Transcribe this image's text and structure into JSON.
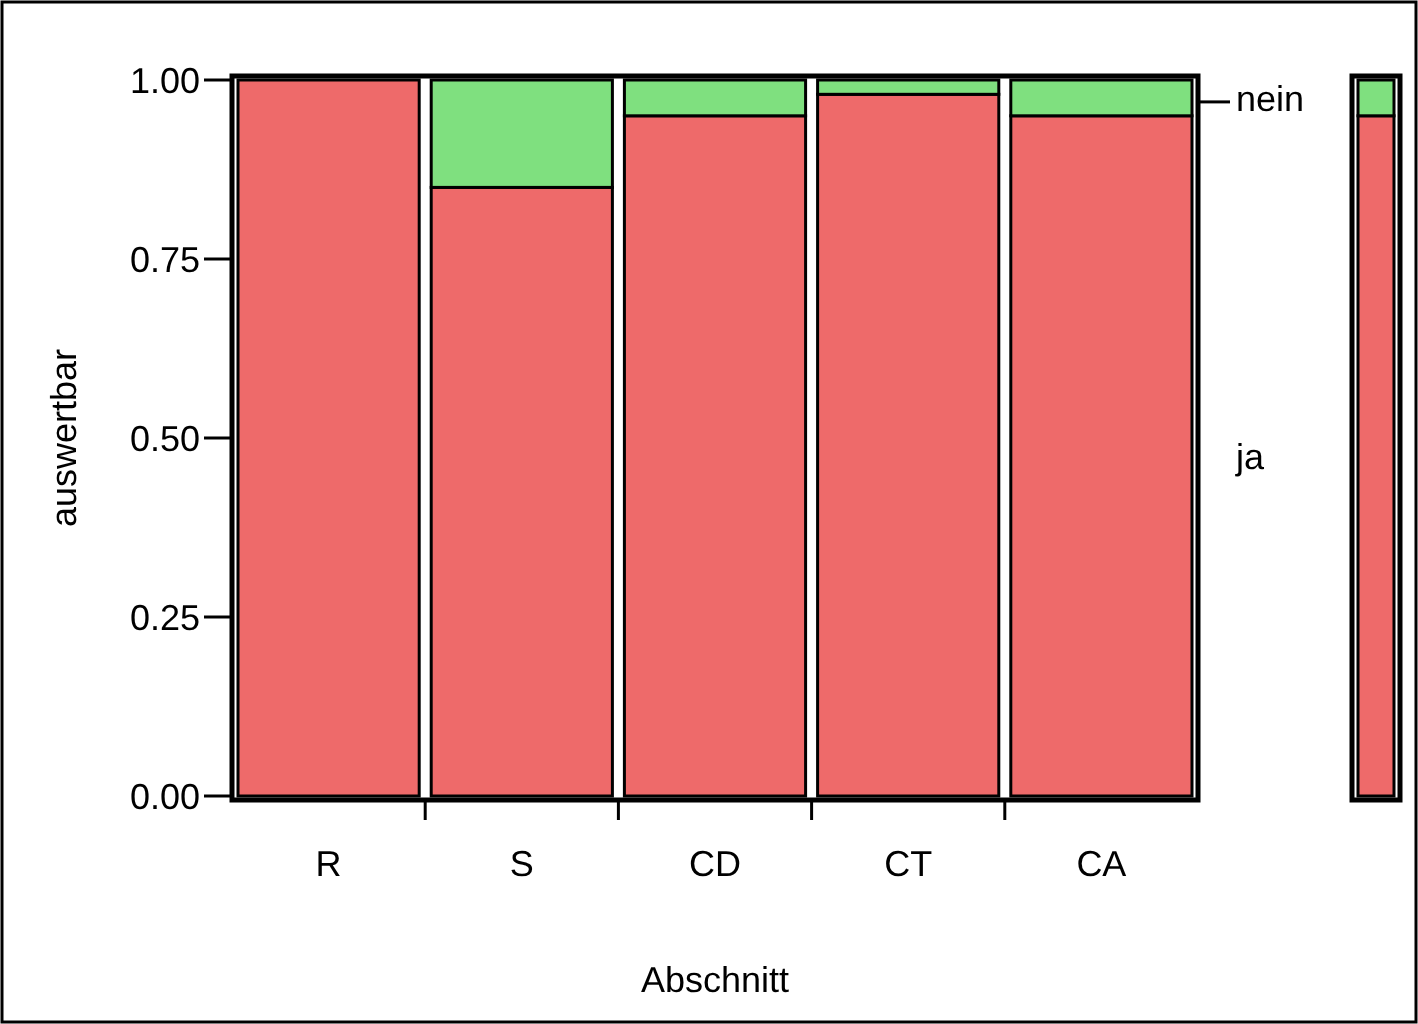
{
  "chart_data": {
    "type": "bar",
    "stacked": true,
    "xlabel": "Abschnitt",
    "ylabel": "auswertbar",
    "categories": [
      "R",
      "S",
      "CD",
      "CT",
      "CA",
      null
    ],
    "series": [
      {
        "name": "ja",
        "color": "#ee6a6a",
        "values": [
          1.0,
          0.85,
          0.95,
          0.98,
          0.95,
          0.95
        ]
      },
      {
        "name": "nein",
        "color": "#7fe07f",
        "values": [
          0.0,
          0.15,
          0.05,
          0.02,
          0.05,
          0.05
        ]
      }
    ],
    "ylim": [
      0,
      1
    ],
    "yticks": [
      {
        "value": 0,
        "label": "0.00"
      },
      {
        "value": 0.25,
        "label": "0.25"
      },
      {
        "value": 0.5,
        "label": "0.50"
      },
      {
        "value": 0.75,
        "label": "0.75"
      },
      {
        "value": 1,
        "label": "1.00"
      }
    ],
    "legend": "right"
  }
}
